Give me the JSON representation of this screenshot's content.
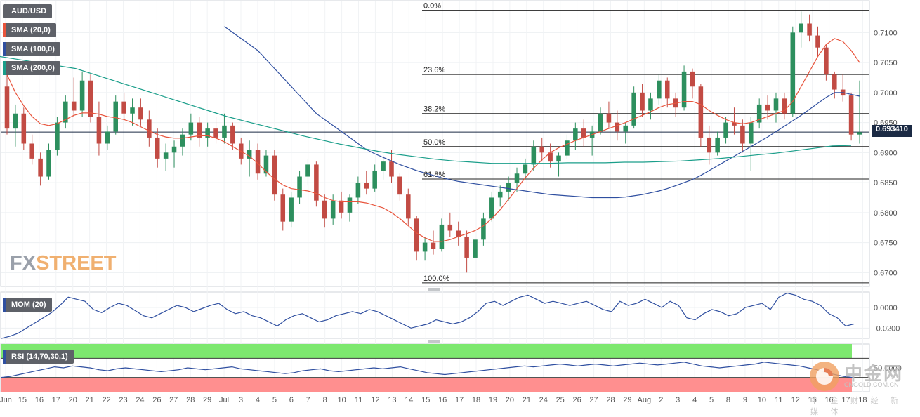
{
  "chart_data": {
    "type": "candlestick",
    "symbol": "AUD/USD",
    "last_price": "0.693410",
    "watermark": "FXSTREET",
    "overlay_watermark": {
      "title": "中金网",
      "url": "CNGOLD.COM.CN",
      "sub": "中 金 财 经 新 媒 体"
    },
    "indicators": [
      {
        "name": "SMA (20,0)",
        "color": "#e8543c"
      },
      {
        "name": "SMA (100,0)",
        "color": "#2f4fa0"
      },
      {
        "name": "SMA (200,0)",
        "color": "#1a9e8a"
      }
    ],
    "price_axis": {
      "ticks": [
        "0.7100",
        "0.7050",
        "0.7000",
        "0.6950",
        "0.6900",
        "0.6850",
        "0.6800",
        "0.6750",
        "0.6700"
      ],
      "ylim": [
        0.6677,
        0.7153
      ]
    },
    "fib_levels": [
      {
        "label": "0.0%",
        "price": 0.7137
      },
      {
        "label": "23.6%",
        "price": 0.703
      },
      {
        "label": "38.2%",
        "price": 0.6965
      },
      {
        "label": "50.0%",
        "price": 0.691
      },
      {
        "label": "61.8%",
        "price": 0.6856
      },
      {
        "label": "100.0%",
        "price": 0.6683
      }
    ],
    "current_price_line": 0.69341,
    "x_axis": {
      "labels": [
        "Jun",
        "15",
        "16",
        "17",
        "20",
        "21",
        "22",
        "23",
        "24",
        "26",
        "27",
        "28",
        "29",
        "Jul",
        "3",
        "4",
        "5",
        "6",
        "7",
        "8",
        "10",
        "11",
        "12",
        "13",
        "14",
        "15",
        "16",
        "17",
        "18",
        "19",
        "20",
        "21",
        "24",
        "25",
        "26",
        "27",
        "28",
        "29",
        "Aug",
        "2",
        "3",
        "4",
        "5",
        "8",
        "9",
        "10",
        "11",
        "12",
        "15",
        "16",
        "17",
        "18"
      ]
    },
    "ohlc": [
      [
        0.701,
        0.704,
        0.693,
        0.694
      ],
      [
        0.694,
        0.698,
        0.691,
        0.6965
      ],
      [
        0.6965,
        0.6975,
        0.6905,
        0.6915
      ],
      [
        0.6915,
        0.693,
        0.688,
        0.689
      ],
      [
        0.689,
        0.69,
        0.6845,
        0.686
      ],
      [
        0.686,
        0.6915,
        0.6855,
        0.6905
      ],
      [
        0.6905,
        0.696,
        0.6895,
        0.695
      ],
      [
        0.695,
        0.6995,
        0.694,
        0.6985
      ],
      [
        0.6985,
        0.7025,
        0.696,
        0.697
      ],
      [
        0.697,
        0.7035,
        0.696,
        0.702
      ],
      [
        0.702,
        0.703,
        0.695,
        0.696
      ],
      [
        0.696,
        0.6985,
        0.6895,
        0.6915
      ],
      [
        0.6915,
        0.6945,
        0.6905,
        0.6935
      ],
      [
        0.6935,
        0.6995,
        0.693,
        0.6985
      ],
      [
        0.6985,
        0.7,
        0.6955,
        0.6965
      ],
      [
        0.6965,
        0.699,
        0.6945,
        0.6975
      ],
      [
        0.6975,
        0.699,
        0.6945,
        0.6955
      ],
      [
        0.6955,
        0.697,
        0.691,
        0.6925
      ],
      [
        0.6925,
        0.694,
        0.6875,
        0.689
      ],
      [
        0.689,
        0.6915,
        0.687,
        0.69
      ],
      [
        0.69,
        0.692,
        0.6875,
        0.691
      ],
      [
        0.691,
        0.694,
        0.6895,
        0.693
      ],
      [
        0.693,
        0.6965,
        0.692,
        0.695
      ],
      [
        0.695,
        0.696,
        0.691,
        0.6925
      ],
      [
        0.6925,
        0.695,
        0.691,
        0.694
      ],
      [
        0.694,
        0.696,
        0.6915,
        0.6925
      ],
      [
        0.6925,
        0.6965,
        0.6915,
        0.6945
      ],
      [
        0.6945,
        0.695,
        0.6905,
        0.6915
      ],
      [
        0.6915,
        0.6925,
        0.688,
        0.689
      ],
      [
        0.689,
        0.692,
        0.686,
        0.6905
      ],
      [
        0.6905,
        0.6915,
        0.6855,
        0.6865
      ],
      [
        0.6865,
        0.6905,
        0.686,
        0.6895
      ],
      [
        0.6895,
        0.6905,
        0.682,
        0.683
      ],
      [
        0.683,
        0.684,
        0.677,
        0.6785
      ],
      [
        0.6785,
        0.6835,
        0.6775,
        0.6825
      ],
      [
        0.6825,
        0.687,
        0.6815,
        0.686
      ],
      [
        0.686,
        0.689,
        0.6845,
        0.688
      ],
      [
        0.688,
        0.6885,
        0.681,
        0.682
      ],
      [
        0.682,
        0.683,
        0.6775,
        0.679
      ],
      [
        0.679,
        0.683,
        0.678,
        0.682
      ],
      [
        0.682,
        0.6835,
        0.679,
        0.68
      ],
      [
        0.68,
        0.683,
        0.6785,
        0.6825
      ],
      [
        0.6825,
        0.686,
        0.6815,
        0.685
      ],
      [
        0.685,
        0.687,
        0.683,
        0.684
      ],
      [
        0.684,
        0.688,
        0.6835,
        0.687
      ],
      [
        0.687,
        0.6895,
        0.6855,
        0.6885
      ],
      [
        0.6885,
        0.6905,
        0.685,
        0.686
      ],
      [
        0.686,
        0.6865,
        0.682,
        0.683
      ],
      [
        0.683,
        0.684,
        0.678,
        0.679
      ],
      [
        0.679,
        0.6795,
        0.672,
        0.6735
      ],
      [
        0.6735,
        0.676,
        0.672,
        0.675
      ],
      [
        0.675,
        0.677,
        0.673,
        0.674
      ],
      [
        0.674,
        0.679,
        0.6735,
        0.678
      ],
      [
        0.678,
        0.68,
        0.676,
        0.677
      ],
      [
        0.677,
        0.6785,
        0.6745,
        0.676
      ],
      [
        0.676,
        0.677,
        0.67,
        0.6725
      ],
      [
        0.6725,
        0.676,
        0.672,
        0.6755
      ],
      [
        0.6755,
        0.68,
        0.6745,
        0.679
      ],
      [
        0.679,
        0.6835,
        0.6785,
        0.6825
      ],
      [
        0.6825,
        0.6845,
        0.681,
        0.6835
      ],
      [
        0.6835,
        0.686,
        0.682,
        0.685
      ],
      [
        0.685,
        0.6875,
        0.6835,
        0.6865
      ],
      [
        0.6865,
        0.689,
        0.6855,
        0.688
      ],
      [
        0.688,
        0.692,
        0.687,
        0.691
      ],
      [
        0.691,
        0.6925,
        0.6885,
        0.69
      ],
      [
        0.69,
        0.6915,
        0.6875,
        0.6885
      ],
      [
        0.6885,
        0.69,
        0.686,
        0.6895
      ],
      [
        0.6895,
        0.693,
        0.689,
        0.692
      ],
      [
        0.692,
        0.695,
        0.6905,
        0.694
      ],
      [
        0.694,
        0.6955,
        0.691,
        0.6925
      ],
      [
        0.6925,
        0.6945,
        0.6895,
        0.6935
      ],
      [
        0.6935,
        0.6975,
        0.693,
        0.6965
      ],
      [
        0.6965,
        0.6985,
        0.694,
        0.695
      ],
      [
        0.695,
        0.697,
        0.692,
        0.6935
      ],
      [
        0.6935,
        0.695,
        0.6915,
        0.6945
      ],
      [
        0.6945,
        0.701,
        0.694,
        0.7
      ],
      [
        0.7,
        0.7015,
        0.696,
        0.697
      ],
      [
        0.697,
        0.7,
        0.6955,
        0.699
      ],
      [
        0.699,
        0.703,
        0.698,
        0.702
      ],
      [
        0.702,
        0.7025,
        0.6975,
        0.699
      ],
      [
        0.699,
        0.7,
        0.696,
        0.6975
      ],
      [
        0.6975,
        0.7045,
        0.697,
        0.7035
      ],
      [
        0.7035,
        0.704,
        0.699,
        0.701
      ],
      [
        0.701,
        0.7015,
        0.691,
        0.6925
      ],
      [
        0.6925,
        0.6945,
        0.688,
        0.69
      ],
      [
        0.69,
        0.6935,
        0.6895,
        0.6925
      ],
      [
        0.6925,
        0.696,
        0.6915,
        0.695
      ],
      [
        0.695,
        0.6975,
        0.693,
        0.6945
      ],
      [
        0.6945,
        0.6955,
        0.69,
        0.6915
      ],
      [
        0.6915,
        0.696,
        0.687,
        0.695
      ],
      [
        0.695,
        0.699,
        0.694,
        0.698
      ],
      [
        0.698,
        0.6995,
        0.6955,
        0.697
      ],
      [
        0.697,
        0.7,
        0.695,
        0.699
      ],
      [
        0.699,
        0.7,
        0.6955,
        0.6965
      ],
      [
        0.6965,
        0.711,
        0.696,
        0.71
      ],
      [
        0.71,
        0.7135,
        0.7075,
        0.7115
      ],
      [
        0.7115,
        0.713,
        0.7085,
        0.7095
      ],
      [
        0.7095,
        0.711,
        0.706,
        0.7075
      ],
      [
        0.7075,
        0.708,
        0.702,
        0.703
      ],
      [
        0.703,
        0.7035,
        0.699,
        0.7005
      ],
      [
        0.7005,
        0.703,
        0.6985,
        0.6995
      ],
      [
        0.6995,
        0.7,
        0.692,
        0.693
      ],
      [
        0.693,
        0.702,
        0.6915,
        0.6934
      ]
    ],
    "sma20": [
      0.703,
      0.7,
      0.6978,
      0.696,
      0.6948,
      0.6945,
      0.6948,
      0.6955,
      0.6962,
      0.6966,
      0.6966,
      0.6964,
      0.696,
      0.6958,
      0.6955,
      0.695,
      0.6943,
      0.6936,
      0.693,
      0.6926,
      0.6924,
      0.6924,
      0.6926,
      0.6928,
      0.6928,
      0.6924,
      0.6918,
      0.691,
      0.6902,
      0.6894,
      0.6882,
      0.6868,
      0.6856,
      0.6846,
      0.684,
      0.6838,
      0.6836,
      0.6832,
      0.6825,
      0.682,
      0.6818,
      0.6818,
      0.6818,
      0.6816,
      0.6812,
      0.6808,
      0.68,
      0.679,
      0.6778,
      0.6766,
      0.6758,
      0.6752,
      0.6752,
      0.6755,
      0.676,
      0.6765,
      0.677,
      0.6778,
      0.679,
      0.6805,
      0.6822,
      0.684,
      0.6858,
      0.6874,
      0.6888,
      0.69,
      0.6908,
      0.6914,
      0.692,
      0.6925,
      0.693,
      0.6935,
      0.694,
      0.6945,
      0.695,
      0.6956,
      0.6962,
      0.6968,
      0.6975,
      0.698,
      0.6982,
      0.6985,
      0.6985,
      0.698,
      0.697,
      0.6962,
      0.6955,
      0.695,
      0.6948,
      0.695,
      0.6955,
      0.696,
      0.6965,
      0.697,
      0.6985,
      0.701,
      0.7035,
      0.706,
      0.708,
      0.709,
      0.7085,
      0.707,
      0.705
    ],
    "sma100": [
      0.711,
      0.71,
      0.709,
      0.708,
      0.707,
      0.7055,
      0.704,
      0.7025,
      0.701,
      0.6995,
      0.698,
      0.6965,
      0.6955,
      0.6945,
      0.6935,
      0.6925,
      0.6915,
      0.6905,
      0.6898,
      0.6892,
      0.6886,
      0.688,
      0.6875,
      0.687,
      0.6866,
      0.6862,
      0.6858,
      0.6855,
      0.6852,
      0.685,
      0.6848,
      0.6846,
      0.6844,
      0.6842,
      0.684,
      0.6838,
      0.6836,
      0.6834,
      0.6832,
      0.683,
      0.6829,
      0.6828,
      0.6827,
      0.6826,
      0.6825,
      0.6825,
      0.6825,
      0.6825,
      0.6826,
      0.6828,
      0.683,
      0.6833,
      0.6836,
      0.684,
      0.6845,
      0.685,
      0.6855,
      0.6862,
      0.687,
      0.6878,
      0.6886,
      0.6894,
      0.6902,
      0.691,
      0.6918,
      0.6926,
      0.6935,
      0.6944,
      0.6953,
      0.6962,
      0.6972,
      0.6982,
      0.6992,
      0.7,
      0.7,
      0.6997,
      0.6994
    ],
    "sma200": [
      0.706,
      0.7055,
      0.705,
      0.7045,
      0.704,
      0.703,
      0.702,
      0.701,
      0.7,
      0.699,
      0.698,
      0.697,
      0.696,
      0.6952,
      0.6944,
      0.6936,
      0.6928,
      0.6921,
      0.6914,
      0.6908,
      0.6902,
      0.6897,
      0.6893,
      0.6889,
      0.6886,
      0.6884,
      0.6882,
      0.6882,
      0.6882,
      0.6882,
      0.6883,
      0.6883,
      0.6883,
      0.6884,
      0.6884,
      0.6885,
      0.6886,
      0.6888,
      0.689,
      0.6893,
      0.6896,
      0.6899,
      0.6903,
      0.6907,
      0.6911,
      0.6912
    ],
    "momentum": {
      "name": "MOM (20)",
      "ticks": [
        "0.0000",
        "-0.0200"
      ],
      "ylim": [
        -0.03,
        0.015
      ],
      "values": [
        -0.03,
        -0.028,
        -0.025,
        -0.02,
        -0.015,
        -0.01,
        -0.005,
        0.002,
        0.01,
        0.008,
        0.006,
        -0.002,
        -0.005,
        0.0,
        0.004,
        0.002,
        -0.003,
        -0.008,
        -0.01,
        -0.006,
        -0.002,
        0.002,
        0.0,
        -0.004,
        -0.001,
        0.002,
        0.004,
        -0.002,
        -0.006,
        -0.004,
        -0.008,
        -0.01,
        -0.014,
        -0.018,
        -0.012,
        -0.008,
        -0.006,
        -0.01,
        -0.014,
        -0.012,
        -0.008,
        -0.006,
        -0.004,
        -0.006,
        -0.002,
        -0.004,
        -0.008,
        -0.012,
        -0.016,
        -0.02,
        -0.018,
        -0.016,
        -0.012,
        -0.014,
        -0.016,
        -0.014,
        -0.01,
        -0.004,
        0.004,
        0.006,
        0.002,
        0.006,
        0.01,
        0.012,
        0.008,
        0.004,
        0.006,
        0.004,
        0.002,
        0.004,
        0.006,
        0.002,
        -0.002,
        -0.004,
        0.006,
        0.002,
        0.004,
        0.008,
        0.004,
        0.0,
        0.006,
        0.002,
        -0.01,
        -0.012,
        -0.006,
        -0.002,
        -0.004,
        -0.008,
        -0.006,
        0.0,
        0.002,
        0.004,
        -0.002,
        0.01,
        0.014,
        0.012,
        0.008,
        0.006,
        0.002,
        -0.006,
        -0.01,
        -0.018,
        -0.016
      ]
    },
    "rsi": {
      "name": "RSI (14,70,30,1)",
      "overbought": 70,
      "oversold": 30,
      "ticks": [
        "50.0000"
      ],
      "values": [
        30,
        32,
        36,
        40,
        44,
        48,
        52,
        50,
        54,
        52,
        50,
        46,
        44,
        48,
        50,
        48,
        46,
        44,
        42,
        44,
        46,
        50,
        48,
        46,
        48,
        50,
        52,
        48,
        46,
        44,
        42,
        40,
        38,
        40,
        44,
        46,
        48,
        44,
        42,
        44,
        46,
        48,
        50,
        48,
        50,
        52,
        48,
        44,
        40,
        38,
        36,
        38,
        40,
        42,
        44,
        46,
        48,
        50,
        52,
        54,
        52,
        54,
        56,
        58,
        56,
        54,
        56,
        58,
        56,
        54,
        56,
        58,
        60,
        58,
        56,
        58,
        60,
        62,
        58,
        54,
        52,
        50,
        52,
        54,
        56,
        58,
        62,
        60,
        58,
        56,
        54,
        50,
        46,
        40,
        36,
        32,
        30
      ]
    }
  }
}
